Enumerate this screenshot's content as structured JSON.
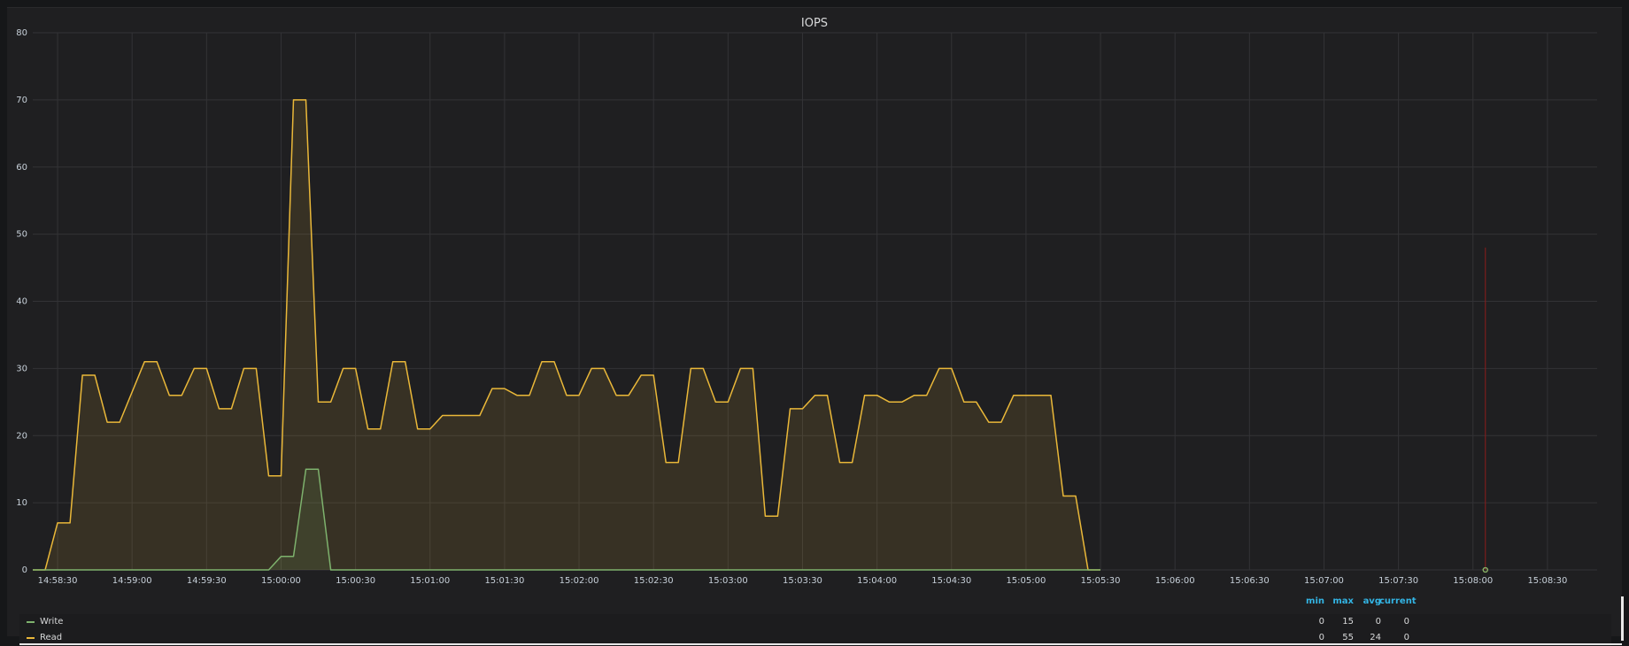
{
  "panel": {
    "title": "IOPS"
  },
  "legend": {
    "headers": [
      "min",
      "max",
      "avg",
      "current"
    ],
    "rows": [
      {
        "name": "Write",
        "color": "#7eb26d",
        "min": "0",
        "max": "15",
        "avg": "0",
        "current": "0"
      },
      {
        "name": "Read",
        "color": "#eab839",
        "min": "0",
        "max": "55",
        "avg": "24",
        "current": "0"
      }
    ]
  },
  "chart_data": {
    "type": "area",
    "title": "IOPS",
    "ylim": [
      0,
      80
    ],
    "yticks": [
      0,
      10,
      20,
      30,
      40,
      50,
      60,
      70,
      80
    ],
    "xlim": [
      "14:58:20",
      "15:08:50"
    ],
    "xticks": [
      "14:58:30",
      "14:59:00",
      "14:59:30",
      "15:00:00",
      "15:00:30",
      "15:01:00",
      "15:01:30",
      "15:02:00",
      "15:02:30",
      "15:03:00",
      "15:03:30",
      "15:04:00",
      "15:04:30",
      "15:05:00",
      "15:05:30",
      "15:06:00",
      "15:06:30",
      "15:07:00",
      "15:07:30",
      "15:08:00",
      "15:08:30"
    ],
    "grid": true,
    "legend_position": "bottom",
    "crosshair_time": "15:08:05",
    "series": [
      {
        "name": "Read",
        "color": "#eab839",
        "points": [
          [
            "14:58:20",
            0
          ],
          [
            "14:58:25",
            0
          ],
          [
            "14:58:30",
            7
          ],
          [
            "14:58:35",
            7
          ],
          [
            "14:58:40",
            29
          ],
          [
            "14:58:45",
            29
          ],
          [
            "14:58:50",
            22
          ],
          [
            "14:58:55",
            22
          ],
          [
            "14:59:05",
            31
          ],
          [
            "14:59:10",
            31
          ],
          [
            "14:59:15",
            26
          ],
          [
            "14:59:20",
            26
          ],
          [
            "14:59:25",
            30
          ],
          [
            "14:59:30",
            30
          ],
          [
            "14:59:35",
            24
          ],
          [
            "14:59:40",
            24
          ],
          [
            "14:59:45",
            30
          ],
          [
            "14:59:50",
            30
          ],
          [
            "14:59:55",
            14
          ],
          [
            "15:00:00",
            14
          ],
          [
            "15:00:05",
            70
          ],
          [
            "15:00:10",
            70
          ],
          [
            "15:00:15",
            25
          ],
          [
            "15:00:20",
            25
          ],
          [
            "15:00:25",
            30
          ],
          [
            "15:00:30",
            30
          ],
          [
            "15:00:35",
            21
          ],
          [
            "15:00:40",
            21
          ],
          [
            "15:00:45",
            31
          ],
          [
            "15:00:50",
            31
          ],
          [
            "15:00:55",
            21
          ],
          [
            "15:01:00",
            21
          ],
          [
            "15:01:05",
            23
          ],
          [
            "15:01:10",
            23
          ],
          [
            "15:01:20",
            23
          ],
          [
            "15:01:25",
            27
          ],
          [
            "15:01:30",
            27
          ],
          [
            "15:01:35",
            26
          ],
          [
            "15:01:40",
            26
          ],
          [
            "15:01:45",
            31
          ],
          [
            "15:01:50",
            31
          ],
          [
            "15:01:55",
            26
          ],
          [
            "15:02:00",
            26
          ],
          [
            "15:02:05",
            30
          ],
          [
            "15:02:10",
            30
          ],
          [
            "15:02:15",
            26
          ],
          [
            "15:02:20",
            26
          ],
          [
            "15:02:25",
            29
          ],
          [
            "15:02:30",
            29
          ],
          [
            "15:02:35",
            16
          ],
          [
            "15:02:40",
            16
          ],
          [
            "15:02:45",
            30
          ],
          [
            "15:02:50",
            30
          ],
          [
            "15:02:55",
            25
          ],
          [
            "15:03:00",
            25
          ],
          [
            "15:03:05",
            30
          ],
          [
            "15:03:10",
            30
          ],
          [
            "15:03:15",
            8
          ],
          [
            "15:03:20",
            8
          ],
          [
            "15:03:25",
            24
          ],
          [
            "15:03:30",
            24
          ],
          [
            "15:03:35",
            26
          ],
          [
            "15:03:40",
            26
          ],
          [
            "15:03:45",
            16
          ],
          [
            "15:03:50",
            16
          ],
          [
            "15:03:55",
            26
          ],
          [
            "15:04:00",
            26
          ],
          [
            "15:04:05",
            25
          ],
          [
            "15:04:10",
            25
          ],
          [
            "15:04:15",
            26
          ],
          [
            "15:04:20",
            26
          ],
          [
            "15:04:25",
            30
          ],
          [
            "15:04:30",
            30
          ],
          [
            "15:04:35",
            25
          ],
          [
            "15:04:40",
            25
          ],
          [
            "15:04:45",
            22
          ],
          [
            "15:04:50",
            22
          ],
          [
            "15:04:55",
            26
          ],
          [
            "15:05:00",
            26
          ],
          [
            "15:05:05",
            26
          ],
          [
            "15:05:10",
            26
          ],
          [
            "15:05:15",
            11
          ],
          [
            "15:05:20",
            11
          ],
          [
            "15:05:25",
            0
          ],
          [
            "15:05:30",
            0
          ]
        ]
      },
      {
        "name": "Write",
        "color": "#7eb26d",
        "points": [
          [
            "14:58:20",
            0
          ],
          [
            "14:59:55",
            0
          ],
          [
            "15:00:00",
            2
          ],
          [
            "15:00:05",
            2
          ],
          [
            "15:00:10",
            15
          ],
          [
            "15:00:15",
            15
          ],
          [
            "15:00:20",
            0
          ],
          [
            "15:05:30",
            0
          ]
        ]
      }
    ]
  }
}
